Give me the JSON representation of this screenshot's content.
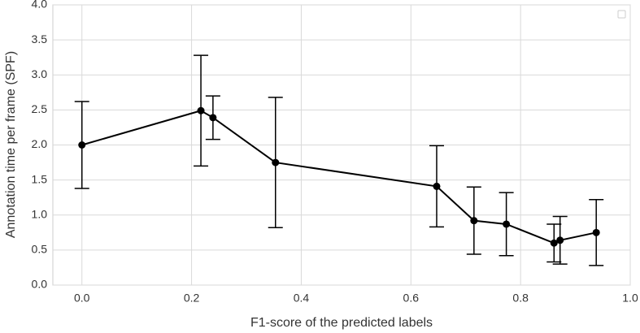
{
  "chart_data": {
    "type": "line",
    "xlabel": "F1-score of the predicted labels",
    "ylabel": "Annotation time per frame (SPF)",
    "x": [
      0.0,
      0.217,
      0.239,
      0.353,
      0.647,
      0.715,
      0.774,
      0.861,
      0.872,
      0.938
    ],
    "values": [
      2.0,
      2.49,
      2.39,
      1.75,
      1.41,
      0.92,
      0.87,
      0.6,
      0.64,
      0.75
    ],
    "errors": [
      0.62,
      0.79,
      0.31,
      0.93,
      0.58,
      0.48,
      0.45,
      0.27,
      0.34,
      0.47
    ],
    "color": "#000000",
    "xlim": [
      -0.053,
      1.0
    ],
    "ylim": [
      0,
      4
    ],
    "xticks": [
      {
        "value": 0,
        "label": "0.0"
      },
      0.2,
      0.4,
      0.6,
      0.8,
      {
        "value": 1,
        "label": "1.0"
      }
    ],
    "yticks": [
      {
        "value": 0,
        "label": "0.0"
      },
      0.5,
      {
        "value": 1,
        "label": "1.0"
      },
      1.5,
      {
        "value": 2,
        "label": "2.0"
      },
      2.5,
      {
        "value": 3,
        "label": "3.0"
      },
      3.5,
      {
        "value": 4,
        "label": "4.0"
      }
    ],
    "grid": true
  }
}
